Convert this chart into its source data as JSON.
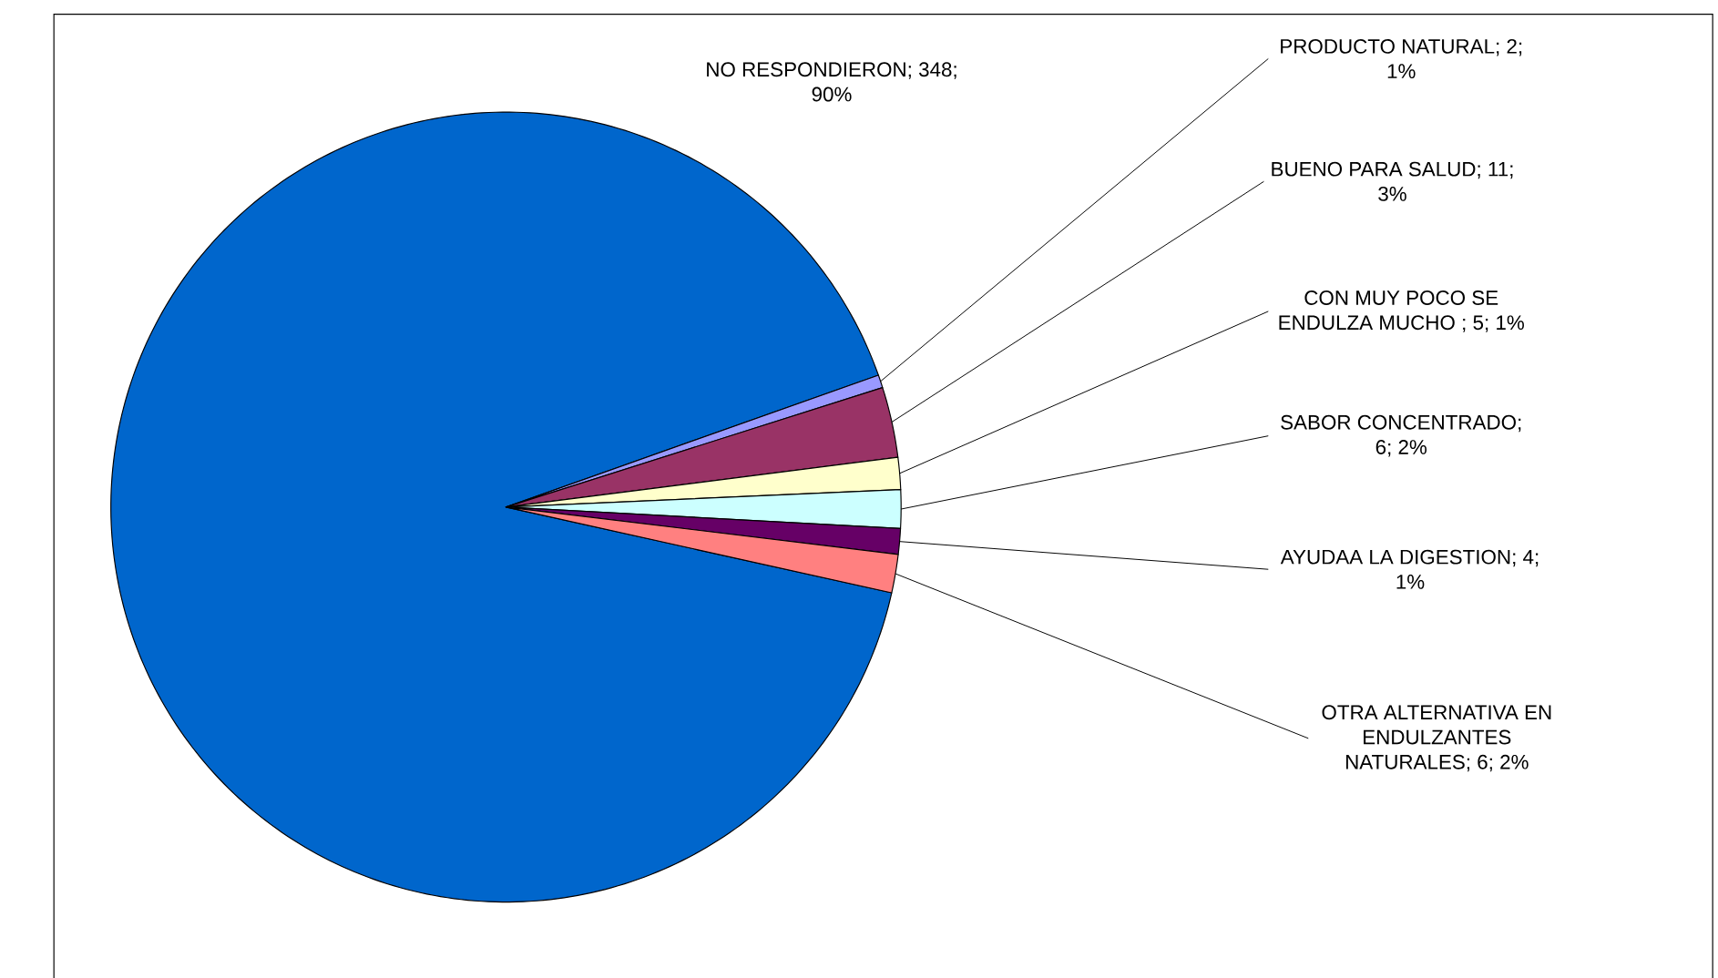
{
  "chart_data": {
    "type": "pie",
    "categories": [
      "NO RESPONDIERON; 348; 90%",
      "PRODUCTO NATURAL; 2; 1%",
      "BUENO PARA SALUD; 11; 3%",
      "CON MUY POCO SE ENDULZA MUCHO ; 5; 1%",
      "SABOR CONCENTRADO; 6; 2%",
      "AYUDAA LA DIGESTION; 4; 1%",
      "OTRA ALTERNATIVA EN ENDULZANTES NATURALES; 6; 2%"
    ],
    "values": [
      348,
      2,
      11,
      5,
      6,
      4,
      6
    ],
    "colors": [
      "#0066cc",
      "#9999ff",
      "#993366",
      "#ffffcc",
      "#ccffff",
      "#660066",
      "#ff8080"
    ]
  }
}
